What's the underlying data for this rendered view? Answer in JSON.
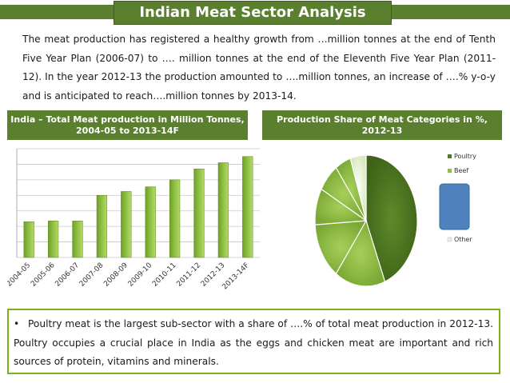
{
  "header": {
    "title": "Indian Meat Sector Analysis"
  },
  "intro": {
    "text": "The meat production has registered a healthy growth from …million tonnes at the end of Tenth Five Year Plan (2006-07) to …. million tonnes at the end of the Eleventh Five Year Plan (2011-12). In the year 2012-13 the production amounted to ….million tonnes, an increase of ….% y-o-y and is anticipated to reach….million tonnes by 2013-14."
  },
  "left_panel": {
    "title": "India – Total Meat production in Million Tonnes, 2004-05 to 2013-14F"
  },
  "right_panel": {
    "title": "Production Share of Meat Categories in %, 2012-13"
  },
  "bottom": {
    "bullet": "•",
    "text": "Poultry meat is the largest sub-sector with a share of ….% of total meat production in 2012-13. Poultry occupies a crucial place in India as the eggs and chicken meat are important and rich sources of protein, vitamins and minerals."
  },
  "colors": {
    "header_green": "#5a7f2e",
    "bar_green": "#8cbf3f",
    "box_border": "#7ab317",
    "legend_blue": "#4f81bd"
  },
  "chart_data": [
    {
      "type": "bar",
      "categories": [
        "2004-05",
        "2005-06",
        "2006-07",
        "2007-08",
        "2008-09",
        "2009-10",
        "2010-11",
        "2011-12",
        "2012-13",
        "2013-14F"
      ],
      "values": [
        2.3,
        2.35,
        2.35,
        4.0,
        4.25,
        4.55,
        5.0,
        5.7,
        6.1,
        6.5
      ],
      "ylim": [
        0,
        7
      ],
      "grid": true
    },
    {
      "type": "pie",
      "slices": [
        {
          "label": "Poultry",
          "value": 44
        },
        {
          "label": "Beef",
          "value": 16
        },
        {
          "label": "",
          "value": 14
        },
        {
          "label": "",
          "value": 9
        },
        {
          "label": "",
          "value": 7
        },
        {
          "label": "",
          "value": 5
        },
        {
          "label": "Other",
          "value": 5
        }
      ],
      "legend": "right"
    }
  ]
}
